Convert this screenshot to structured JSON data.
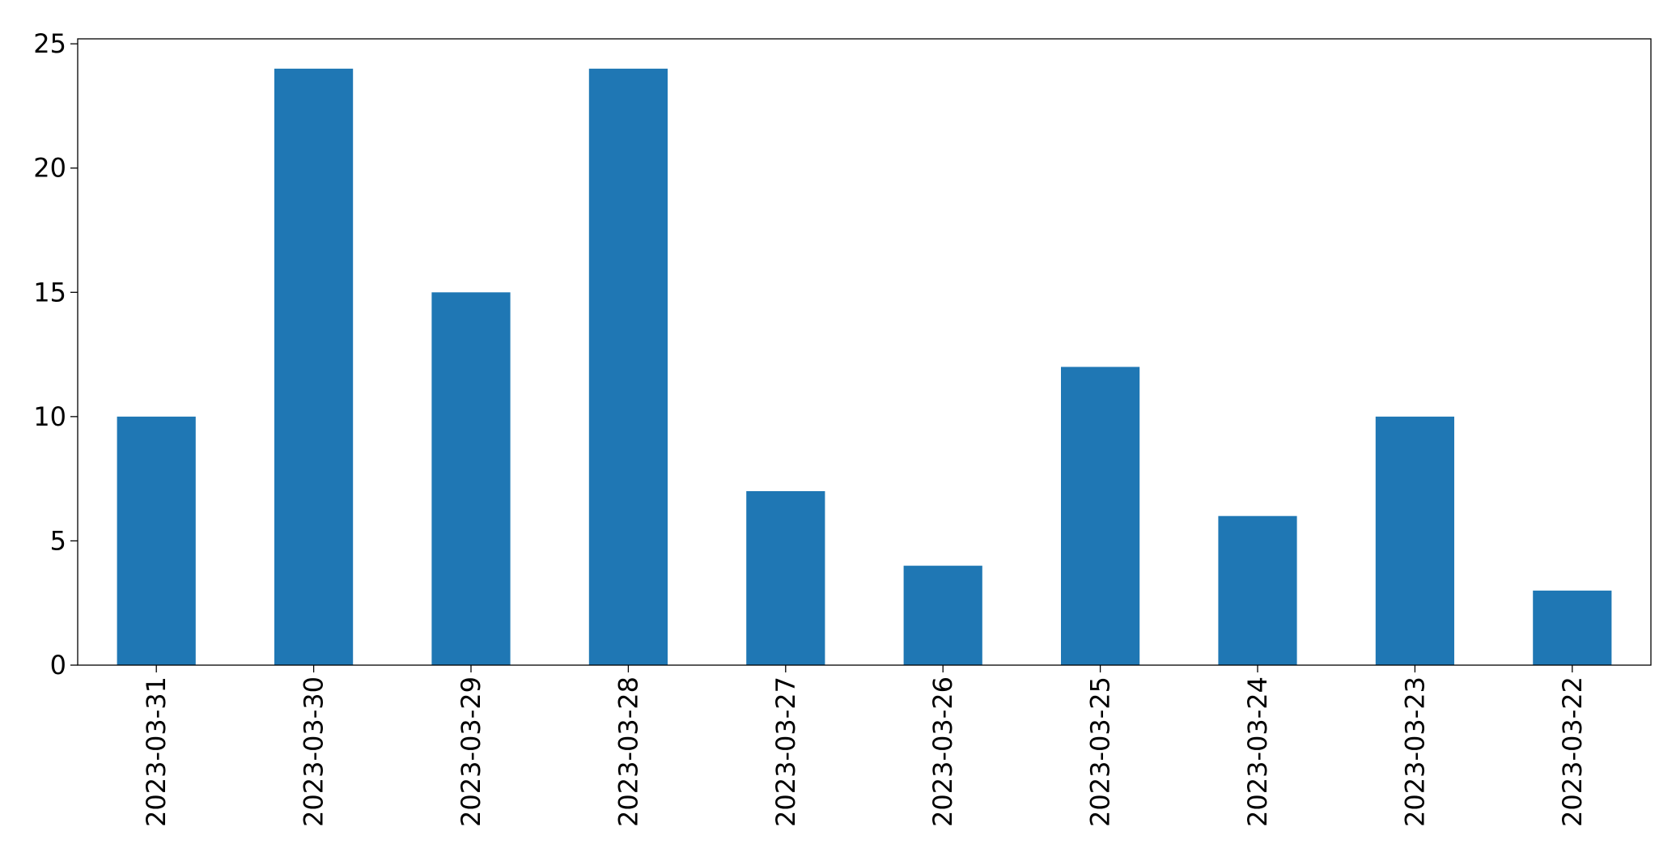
{
  "chart_data": {
    "type": "bar",
    "categories": [
      "2023-03-31",
      "2023-03-30",
      "2023-03-29",
      "2023-03-28",
      "2023-03-27",
      "2023-03-26",
      "2023-03-25",
      "2023-03-24",
      "2023-03-23",
      "2023-03-22"
    ],
    "values": [
      10,
      24,
      15,
      24,
      7,
      4,
      12,
      6,
      10,
      3
    ],
    "color": "#1f77b4",
    "ylim": [
      0,
      25.2
    ],
    "yticks": [
      0,
      5,
      10,
      15,
      20,
      25
    ],
    "grid": false
  }
}
